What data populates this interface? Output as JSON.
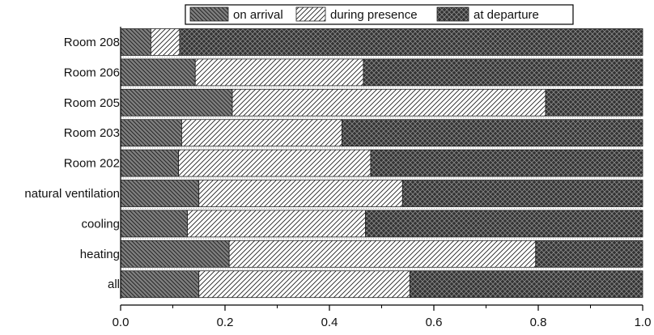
{
  "chart_data": {
    "type": "bar",
    "orientation": "horizontal",
    "stacked": true,
    "categories": [
      "Room 208",
      "Room 206",
      "Room 205",
      "Room 203",
      "Room 202",
      "natural ventilation",
      "cooling",
      "heating",
      "all"
    ],
    "series": [
      {
        "name": "on arrival",
        "values": [
          0.058,
          0.143,
          0.214,
          0.117,
          0.111,
          0.15,
          0.128,
          0.208,
          0.15
        ]
      },
      {
        "name": "during presence",
        "values": [
          0.055,
          0.322,
          0.6,
          0.307,
          0.368,
          0.39,
          0.341,
          0.587,
          0.404
        ]
      },
      {
        "name": "at departure",
        "values": [
          0.887,
          0.535,
          0.186,
          0.576,
          0.521,
          0.46,
          0.531,
          0.205,
          0.446
        ]
      }
    ],
    "xlim": [
      0,
      1
    ],
    "xticks": [
      "0.0",
      "0.2",
      "0.4",
      "0.6",
      "0.8",
      "1.0"
    ],
    "xlabel": "",
    "ylabel": "",
    "title": "",
    "legend_position": "top",
    "grid": false,
    "colors": {
      "on_arrival": "#7f7f7f",
      "during_presence": "#ffffff",
      "at_departure": "#333333",
      "axis": "#000000"
    }
  }
}
